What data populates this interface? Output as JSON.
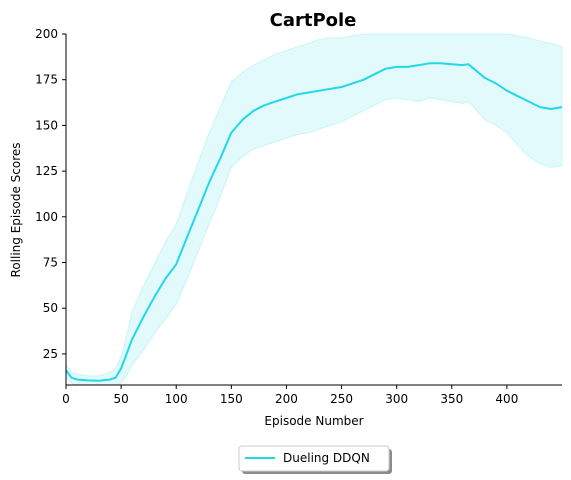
{
  "chart_data": {
    "type": "line",
    "title": "CartPole",
    "xlabel": "Episode Number",
    "ylabel": "Rolling Episode Scores",
    "xlim": [
      0,
      450
    ],
    "ylim": [
      8,
      200
    ],
    "xticks": [
      0,
      50,
      100,
      150,
      200,
      250,
      300,
      350,
      400
    ],
    "yticks": [
      25,
      50,
      75,
      100,
      125,
      150,
      175,
      200
    ],
    "grid": false,
    "legend_position": "bottom-center",
    "series": [
      {
        "name": "Dueling DDQN",
        "color": "#22d8e6",
        "fill_color": "#22d8e6",
        "x": [
          0,
          5,
          10,
          20,
          30,
          40,
          45,
          50,
          55,
          60,
          70,
          80,
          90,
          100,
          110,
          120,
          130,
          140,
          150,
          160,
          170,
          180,
          190,
          200,
          210,
          220,
          230,
          240,
          250,
          260,
          270,
          280,
          290,
          300,
          310,
          320,
          330,
          340,
          350,
          360,
          365,
          370,
          380,
          390,
          400,
          410,
          420,
          430,
          440,
          450
        ],
        "values": [
          16,
          12,
          11,
          10.5,
          10.3,
          11,
          12,
          17,
          25,
          33,
          45,
          56,
          66,
          74,
          89,
          104,
          119,
          132,
          146,
          153,
          158,
          161,
          163,
          165,
          167,
          168,
          169,
          170,
          171,
          173,
          175,
          178,
          181,
          182,
          182,
          183,
          184,
          184,
          183.5,
          183,
          183.5,
          181,
          176,
          173,
          169,
          166,
          163,
          160,
          159,
          160
        ],
        "upper": [
          19,
          15,
          14,
          13,
          13,
          15,
          17,
          24,
          35,
          48,
          62,
          74,
          86,
          96,
          113,
          130,
          146,
          160,
          174,
          179,
          183,
          186,
          189,
          191,
          193,
          195,
          197,
          198,
          198,
          199,
          200,
          200,
          200,
          200,
          200,
          200,
          200,
          200,
          200,
          200,
          200,
          200,
          200,
          200,
          200,
          199,
          198,
          196,
          195,
          193
        ],
        "lower": [
          13,
          9,
          8,
          8,
          8,
          8,
          8,
          9,
          13,
          19,
          27,
          36,
          44,
          52,
          66,
          81,
          96,
          111,
          127,
          133,
          137,
          139,
          141,
          143,
          145,
          146,
          148,
          150,
          152,
          155,
          158,
          161,
          164,
          165,
          164,
          163,
          165,
          164,
          163,
          162,
          163,
          160,
          153,
          150,
          146,
          139,
          133,
          129,
          127,
          128
        ]
      }
    ]
  }
}
